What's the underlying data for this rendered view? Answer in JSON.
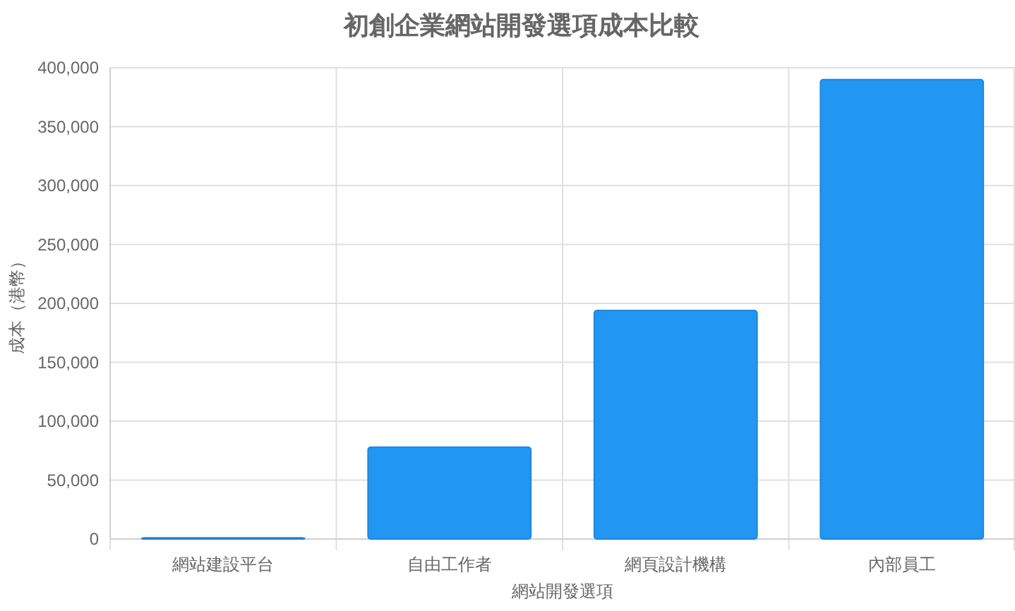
{
  "chart_data": {
    "type": "bar",
    "title": "初創企業網站開發選項成本比較",
    "xlabel": "網站開發選項",
    "ylabel": "成本（港幣）",
    "categories": [
      "網站建設平台",
      "自由工作者",
      "網頁設計機構",
      "內部員工"
    ],
    "values": [
      1000,
      78000,
      194000,
      390000
    ],
    "color": "#2196f3",
    "ylim": [
      0,
      400000
    ],
    "yticks": [
      {
        "value": 0,
        "label": "0"
      },
      {
        "value": 50000,
        "label": "50,000"
      },
      {
        "value": 100000,
        "label": "100,000"
      },
      {
        "value": 150000,
        "label": "150,000"
      },
      {
        "value": 200000,
        "label": "200,000"
      },
      {
        "value": 250000,
        "label": "250,000"
      },
      {
        "value": 300000,
        "label": "300,000"
      },
      {
        "value": 350000,
        "label": "350,000"
      },
      {
        "value": 400000,
        "label": "400,000"
      }
    ],
    "grid": true
  }
}
